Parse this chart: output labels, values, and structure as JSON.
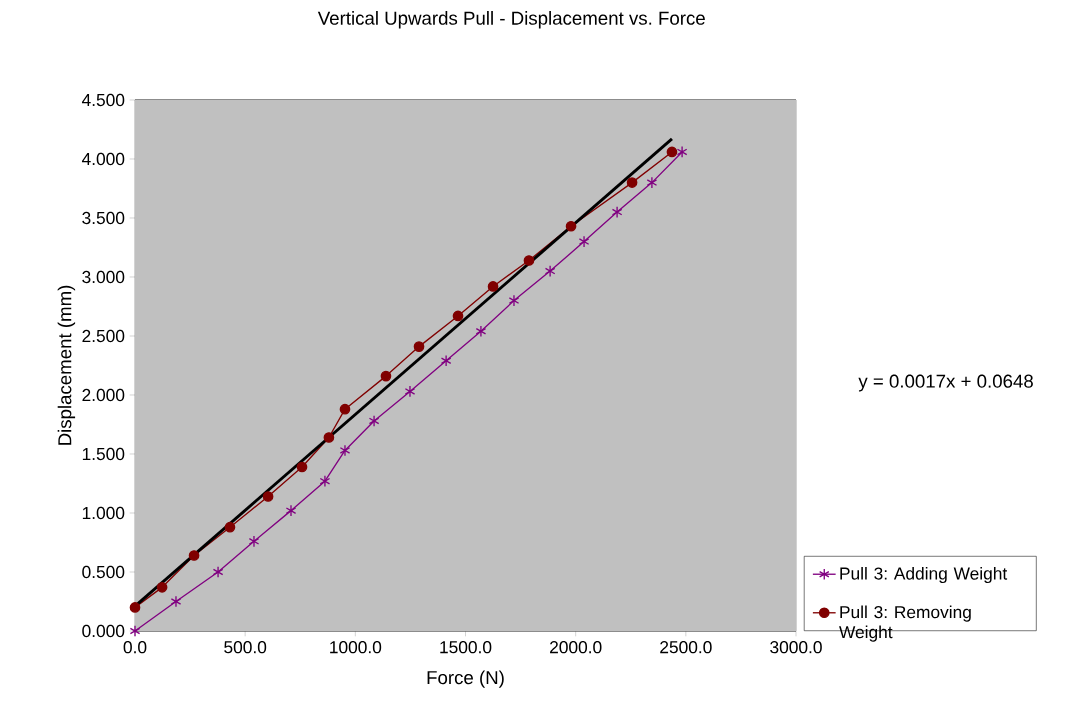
{
  "chart_data": {
    "type": "line",
    "title": "Vertical Upwards Pull - Displacement vs. Force",
    "xlabel": "Force (N)",
    "ylabel": "Displacement (mm)",
    "xlim": [
      0,
      3000
    ],
    "ylim": [
      0,
      4.5
    ],
    "xticks": [
      {
        "value": 0,
        "label": "0.0"
      },
      {
        "value": 500,
        "label": "500.0"
      },
      {
        "value": 1000,
        "label": "1000.0"
      },
      {
        "value": 1500,
        "label": "1500.0"
      },
      {
        "value": 2000,
        "label": "2000.0"
      },
      {
        "value": 2500,
        "label": "2500.0"
      },
      {
        "value": 3000,
        "label": "3000.0"
      }
    ],
    "yticks": [
      {
        "value": 0,
        "label": "0.000"
      },
      {
        "value": 0.5,
        "label": "0.500"
      },
      {
        "value": 1,
        "label": "1.000"
      },
      {
        "value": 1.5,
        "label": "1.500"
      },
      {
        "value": 2,
        "label": "2.000"
      },
      {
        "value": 2.5,
        "label": "2.500"
      },
      {
        "value": 3,
        "label": "3.000"
      },
      {
        "value": 3.5,
        "label": "3.500"
      },
      {
        "value": 4,
        "label": "4.000"
      },
      {
        "value": 4.5,
        "label": "4.500"
      }
    ],
    "grid": "y",
    "legend": "right",
    "line_style": "solid",
    "annotations": [
      "y = 0.0017x + 0.0648"
    ],
    "series": [
      {
        "name": "Pull 3: Adding Weight",
        "color": "#800080",
        "marker": "cross",
        "x": [
          0,
          186,
          377,
          540,
          708,
          862,
          953,
          1085,
          1248,
          1412,
          1570,
          1720,
          1884,
          2038,
          2188,
          2346,
          2483
        ],
        "values": [
          0,
          0.25,
          0.5,
          0.76,
          1.02,
          1.27,
          1.53,
          1.78,
          2.03,
          2.29,
          2.54,
          2.8,
          3.05,
          3.3,
          3.55,
          3.8,
          4.06
        ]
      },
      {
        "name": "Pull 3: Removing Weight",
        "color": "#800000",
        "marker": "circle",
        "x": [
          0,
          123,
          268,
          431,
          604,
          758,
          880,
          953,
          1139,
          1289,
          1466,
          1625,
          1788,
          1979,
          2256,
          2437
        ],
        "values": [
          0.2,
          0.37,
          0.64,
          0.88,
          1.14,
          1.39,
          1.64,
          1.88,
          2.16,
          2.41,
          2.67,
          2.92,
          3.14,
          3.43,
          3.8,
          4.06
        ]
      },
      {
        "color": "#000000",
        "marker": "none",
        "x": [
          0,
          2437
        ],
        "values": [
          0.21,
          4.17
        ]
      }
    ]
  }
}
